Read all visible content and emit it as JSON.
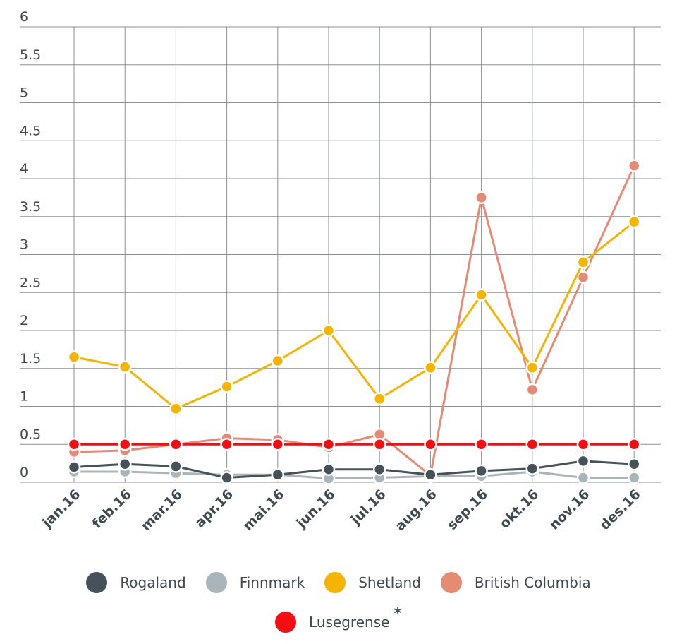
{
  "chart_data": {
    "type": "line",
    "categories": [
      "jan.16",
      "feb.16",
      "mar.16",
      "apr.16",
      "mai.16",
      "jun.16",
      "jul.16",
      "aug.16",
      "sep.16",
      "okt.16",
      "nov.16",
      "des.16"
    ],
    "y_ticks": [
      "6",
      "5.5",
      "5",
      "4.5",
      "4",
      "3.5",
      "3",
      "2.5",
      "2",
      "1.5",
      "1",
      "0.5",
      "0"
    ],
    "ylim": [
      0,
      6
    ],
    "grid": true,
    "legend_position": "bottom",
    "series": [
      {
        "name": "Shetland",
        "color": "#f5b400",
        "values": [
          1.65,
          1.52,
          0.97,
          1.26,
          1.6,
          2.0,
          1.1,
          1.51,
          2.47,
          1.51,
          2.9,
          3.43
        ]
      },
      {
        "name": "British Columbia",
        "color": "#e58a73",
        "values": [
          0.4,
          0.42,
          0.5,
          0.58,
          0.56,
          0.46,
          0.63,
          0.09,
          3.75,
          1.22,
          2.7,
          4.17
        ]
      },
      {
        "name": "Rogaland",
        "color": "#46525a",
        "values": [
          0.2,
          0.24,
          0.21,
          0.06,
          0.1,
          0.17,
          0.17,
          0.1,
          0.15,
          0.18,
          0.28,
          0.24
        ]
      },
      {
        "name": "Finnmark",
        "color": "#a9b5b9",
        "values": [
          0.14,
          0.14,
          0.12,
          0.1,
          0.1,
          0.05,
          0.06,
          0.08,
          0.08,
          0.14,
          0.06,
          0.06
        ]
      },
      {
        "name": "Lusegrense",
        "color": "#f50d12",
        "values": [
          0.5,
          0.5,
          0.5,
          0.5,
          0.5,
          0.5,
          0.5,
          0.5,
          0.5,
          0.5,
          0.5,
          0.5
        ]
      }
    ]
  },
  "legend": {
    "row1": [
      {
        "label": "Rogaland",
        "color": "#46525a"
      },
      {
        "label": "Finnmark",
        "color": "#a9b5b9"
      },
      {
        "label": "Shetland",
        "color": "#f5b400"
      },
      {
        "label": "British Columbia",
        "color": "#e58a73"
      }
    ],
    "row2": [
      {
        "label": "Lusegrense",
        "color": "#f50d12",
        "marker": "*"
      }
    ]
  }
}
